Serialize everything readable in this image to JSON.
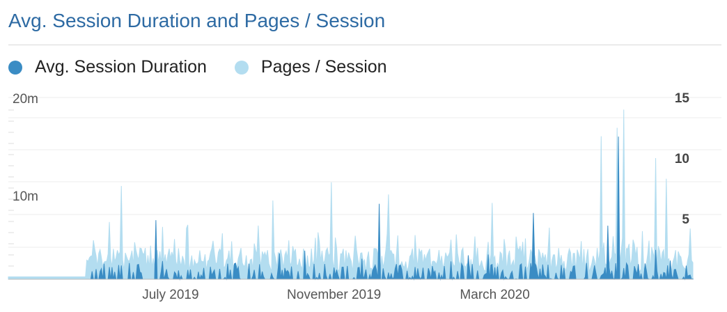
{
  "title": "Avg. Session Duration and Pages / Session",
  "colors": {
    "duration": "#3a8cc4",
    "pages": "#b3ddf0",
    "title": "#2d6aa3",
    "grid": "#eeeeee",
    "axis_text": "#555555"
  },
  "chart_data": {
    "type": "area",
    "x_range": [
      "2019-03-01",
      "2020-07-28"
    ],
    "x_ticks": [
      "July 2019",
      "November 2019",
      "March 2020"
    ],
    "y_left_ticks": [
      "20m",
      "10m"
    ],
    "y_left_range_minutes": [
      0,
      20
    ],
    "y_right_ticks": [
      "15",
      "10",
      "5"
    ],
    "y_right_range": [
      0,
      15
    ],
    "series": [
      {
        "name": "Avg. Session Duration",
        "axis": "left",
        "unit": "minutes",
        "peaks": [
          {
            "date": "2019-06-20",
            "value": 6.5
          },
          {
            "date": "2019-12-05",
            "value": 8.3
          },
          {
            "date": "2020-03-30",
            "value": 7.3
          },
          {
            "date": "2020-06-02",
            "value": 15.7
          },
          {
            "date": "2020-05-25",
            "value": 5.9
          }
        ]
      },
      {
        "name": "Pages / Session",
        "axis": "right",
        "peaks": [
          {
            "date": "2019-05-25",
            "value": 7.7
          },
          {
            "date": "2019-09-16",
            "value": 6.5
          },
          {
            "date": "2019-10-30",
            "value": 8.0
          },
          {
            "date": "2019-12-12",
            "value": 7.0
          },
          {
            "date": "2020-02-28",
            "value": 6.3
          },
          {
            "date": "2020-05-20",
            "value": 11.8
          },
          {
            "date": "2020-06-01",
            "value": 12.5
          },
          {
            "date": "2020-06-06",
            "value": 14.0
          },
          {
            "date": "2020-06-30",
            "value": 10.0
          },
          {
            "date": "2020-07-08",
            "value": 8.3
          }
        ],
        "baseline_before": {
          "date": "2019-04-29",
          "value": 0.5
        }
      }
    ],
    "legend": "top-left",
    "grid": true
  }
}
